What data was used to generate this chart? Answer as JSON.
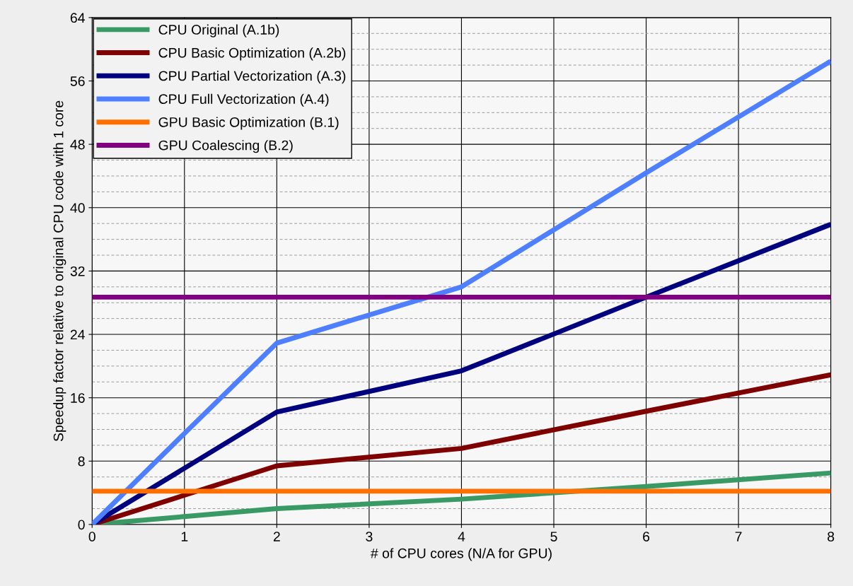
{
  "chart_data": {
    "type": "line",
    "xlabel": "# of CPU cores (N/A for GPU)",
    "ylabel": "Speedup factor relative to original CPU code with 1 core",
    "x": [
      0,
      1,
      2,
      4,
      6,
      8
    ],
    "xlim": [
      0,
      8
    ],
    "xticks": [
      0,
      1,
      2,
      3,
      4,
      5,
      6,
      7,
      8
    ],
    "ylim": [
      0,
      64
    ],
    "yticks": [
      0,
      8,
      16,
      24,
      32,
      40,
      48,
      56,
      64
    ],
    "grid": true,
    "legend": "top left",
    "marker": "none",
    "line_style": "solid",
    "series": [
      {
        "name": "CPU Original (A.1b)",
        "color": "#3a9a66",
        "values": [
          0,
          1,
          2,
          3.2,
          4.8,
          6.5
        ]
      },
      {
        "name": "CPU Basic Optimization (A.2b)",
        "color": "#7f0000",
        "values": [
          0,
          3.7,
          7.4,
          9.6,
          14.3,
          18.9
        ]
      },
      {
        "name": "CPU Partial Vectorization (A.3)",
        "color": "#00007f",
        "values": [
          0,
          7.1,
          14.2,
          19.4,
          28.7,
          37.9
        ]
      },
      {
        "name": "CPU Full Vectorization (A.4)",
        "color": "#4d7fff",
        "values": [
          0,
          11.5,
          22.9,
          30.0,
          44.4,
          58.5
        ]
      },
      {
        "name": "GPU Basic Optimization (B.1)",
        "color": "#ff7000",
        "values": [
          4.2,
          4.2,
          4.2,
          4.2,
          4.2,
          4.2
        ]
      },
      {
        "name": "GPU Coalescing (B.2)",
        "color": "#800080",
        "values": [
          28.7,
          28.7,
          28.7,
          28.7,
          28.7,
          28.7
        ]
      }
    ]
  }
}
